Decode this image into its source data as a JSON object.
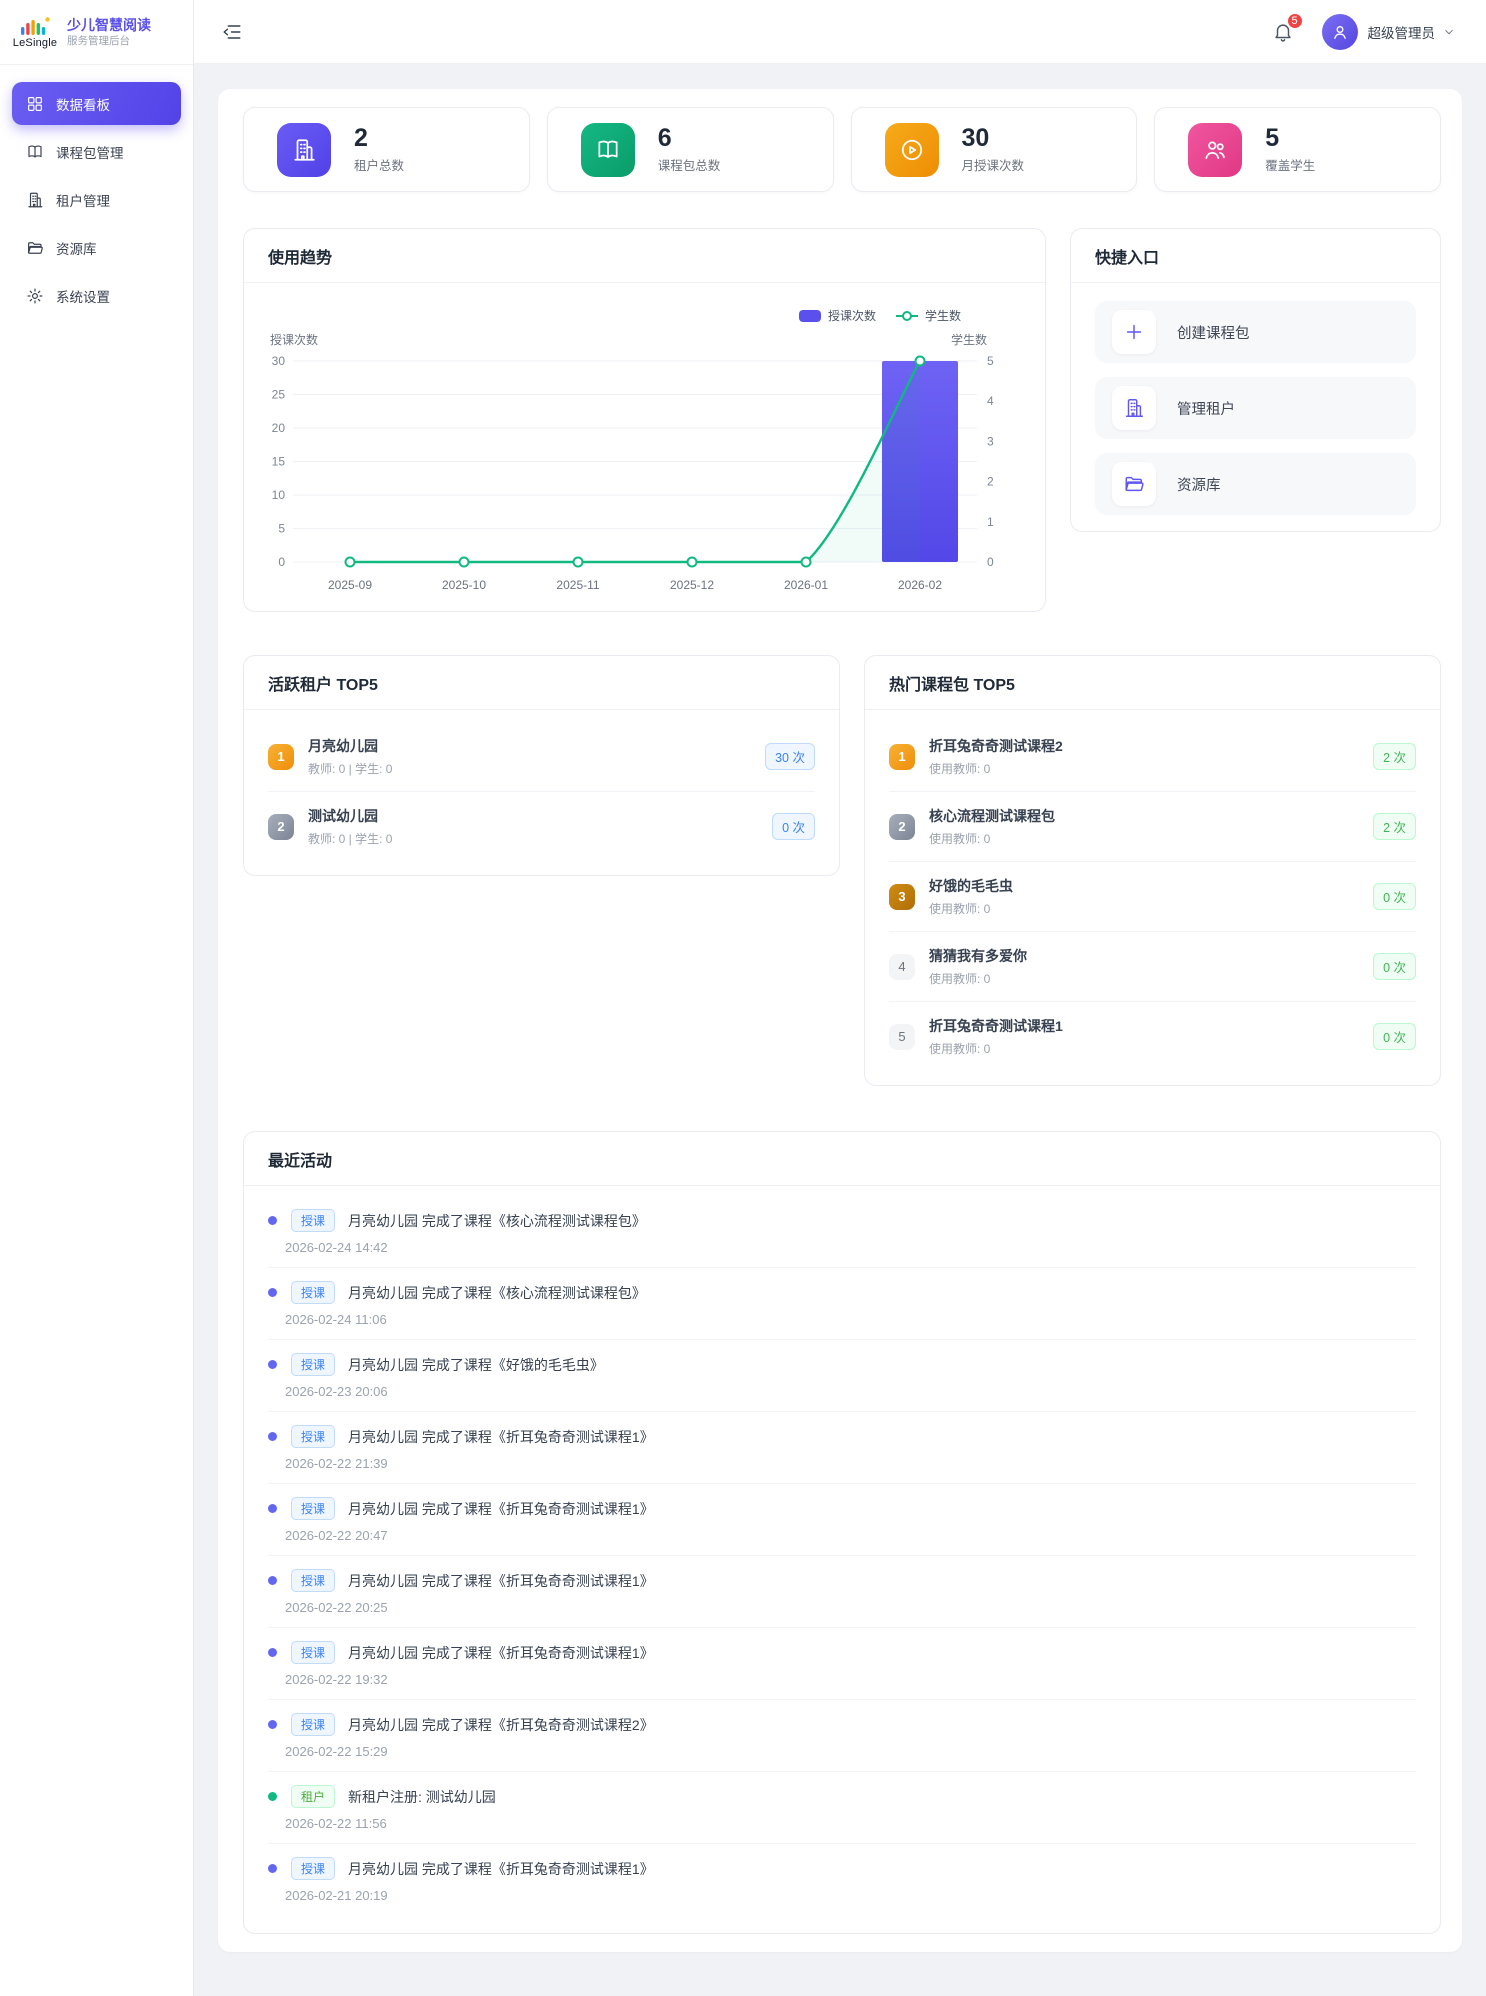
{
  "brand": {
    "logo_text": "LeSingle",
    "title": "少儿智慧阅读",
    "subtitle": "服务管理后台"
  },
  "header": {
    "notification_count": "5",
    "user_name": "超级管理员"
  },
  "sidebar": {
    "items": [
      {
        "label": "数据看板",
        "icon": "dashboard",
        "state": "active"
      },
      {
        "label": "课程包管理",
        "icon": "book",
        "state": ""
      },
      {
        "label": "租户管理",
        "icon": "building",
        "state": ""
      },
      {
        "label": "资源库",
        "icon": "folder",
        "state": ""
      },
      {
        "label": "系统设置",
        "icon": "gear",
        "state": ""
      }
    ]
  },
  "stats": {
    "items": [
      {
        "value": "2",
        "label": "租户总数",
        "icon": "building",
        "color": "#6a5cf5",
        "color2": "#5141e8"
      },
      {
        "value": "6",
        "label": "课程包总数",
        "icon": "book",
        "color": "#15b885",
        "color2": "#0a9c69"
      },
      {
        "value": "30",
        "label": "月授课次数",
        "icon": "play",
        "color": "#f6ab1a",
        "color2": "#ee8d05"
      },
      {
        "value": "5",
        "label": "覆盖学生",
        "icon": "users",
        "color": "#f0569f",
        "color2": "#e13884"
      }
    ]
  },
  "usage_trend": {
    "title": "使用趋势"
  },
  "chart_data": {
    "type": "bar",
    "subtype": "combo bar+line, dual y-axis",
    "categories": [
      "2025-09",
      "2025-10",
      "2025-11",
      "2025-12",
      "2026-01",
      "2026-02"
    ],
    "series": [
      {
        "name": "授课次数",
        "type": "bar",
        "y_axis": "left",
        "color": "#5b50ee",
        "values": [
          0,
          0,
          0,
          0,
          0,
          30
        ]
      },
      {
        "name": "学生数",
        "type": "line",
        "y_axis": "right",
        "color": "#10b981",
        "values": [
          0,
          0,
          0,
          0,
          0,
          5
        ]
      }
    ],
    "left_axis": {
      "name": "授课次数",
      "min": 0,
      "max": 30,
      "step": 5
    },
    "right_axis": {
      "name": "学生数",
      "min": 0,
      "max": 5,
      "step": 1
    },
    "legend_position": "top-right",
    "grid": true
  },
  "quick_entry": {
    "title": "快捷入口",
    "items": [
      {
        "label": "创建课程包",
        "icon": "plus"
      },
      {
        "label": "管理租户",
        "icon": "building"
      },
      {
        "label": "资源库",
        "icon": "folder"
      }
    ]
  },
  "active_tenants": {
    "title": "活跃租户 TOP5",
    "items": [
      {
        "rank": "1",
        "tier": "gold",
        "name": "月亮幼儿园",
        "meta": "教师: 0 | 学生: 0",
        "count": "30 次",
        "pill": "blue"
      },
      {
        "rank": "2",
        "tier": "silver",
        "name": "测试幼儿园",
        "meta": "教师: 0 | 学生: 0",
        "count": "0 次",
        "pill": "blue"
      }
    ]
  },
  "hot_packages": {
    "title": "热门课程包 TOP5",
    "items": [
      {
        "rank": "1",
        "tier": "gold",
        "name": "折耳兔奇奇测试课程2",
        "meta": "使用教师: 0",
        "count": "2 次",
        "pill": "green"
      },
      {
        "rank": "2",
        "tier": "silver",
        "name": "核心流程测试课程包",
        "meta": "使用教师: 0",
        "count": "2 次",
        "pill": "green"
      },
      {
        "rank": "3",
        "tier": "bronze",
        "name": "好饿的毛毛虫",
        "meta": "使用教师: 0",
        "count": "0 次",
        "pill": "green"
      },
      {
        "rank": "4",
        "tier": "plain",
        "name": "猜猜我有多爱你",
        "meta": "使用教师: 0",
        "count": "0 次",
        "pill": "green"
      },
      {
        "rank": "5",
        "tier": "plain",
        "name": "折耳兔奇奇测试课程1",
        "meta": "使用教师: 0",
        "count": "0 次",
        "pill": "green"
      }
    ]
  },
  "recent_activity": {
    "title": "最近活动",
    "items": [
      {
        "badge": "授课",
        "kind": "course",
        "text": "月亮幼儿园 完成了课程《核心流程测试课程包》",
        "time": "2026-02-24 14:42"
      },
      {
        "badge": "授课",
        "kind": "course",
        "text": "月亮幼儿园 完成了课程《核心流程测试课程包》",
        "time": "2026-02-24 11:06"
      },
      {
        "badge": "授课",
        "kind": "course",
        "text": "月亮幼儿园 完成了课程《好饿的毛毛虫》",
        "time": "2026-02-23 20:06"
      },
      {
        "badge": "授课",
        "kind": "course",
        "text": "月亮幼儿园 完成了课程《折耳兔奇奇测试课程1》",
        "time": "2026-02-22 21:39"
      },
      {
        "badge": "授课",
        "kind": "course",
        "text": "月亮幼儿园 完成了课程《折耳兔奇奇测试课程1》",
        "time": "2026-02-22 20:47"
      },
      {
        "badge": "授课",
        "kind": "course",
        "text": "月亮幼儿园 完成了课程《折耳兔奇奇测试课程1》",
        "time": "2026-02-22 20:25"
      },
      {
        "badge": "授课",
        "kind": "course",
        "text": "月亮幼儿园 完成了课程《折耳兔奇奇测试课程1》",
        "time": "2026-02-22 19:32"
      },
      {
        "badge": "授课",
        "kind": "course",
        "text": "月亮幼儿园 完成了课程《折耳兔奇奇测试课程2》",
        "time": "2026-02-22 15:29"
      },
      {
        "badge": "租户",
        "kind": "tenant",
        "text": "新租户注册: 测试幼儿园",
        "time": "2026-02-22 11:56"
      },
      {
        "badge": "授课",
        "kind": "course",
        "text": "月亮幼儿园 完成了课程《折耳兔奇奇测试课程1》",
        "time": "2026-02-21 20:19"
      }
    ]
  }
}
